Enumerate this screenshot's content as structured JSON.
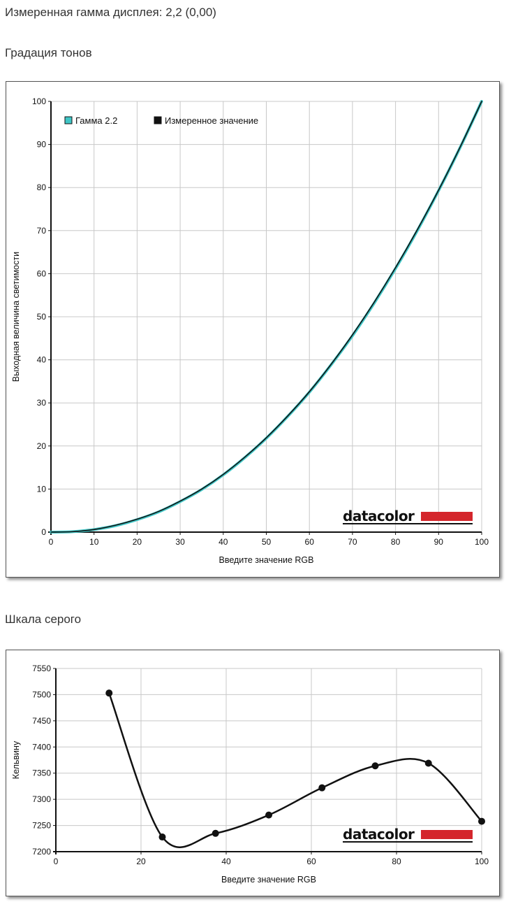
{
  "header": {
    "measured_gamma": "Измеренная гамма дисплея: 2,2 (0,00)",
    "tone_section": "Градация тонов",
    "gray_section": "Шкала серого"
  },
  "brand": {
    "text": "datacolor",
    "bar_color": "#d4262c"
  },
  "chart_data": [
    {
      "type": "line",
      "title": "",
      "xlabel": "Введите значение RGB",
      "ylabel": "Выходная величина светимости",
      "xlim": [
        0,
        100
      ],
      "ylim": [
        0,
        100
      ],
      "xticks": [
        0,
        10,
        20,
        30,
        40,
        50,
        60,
        70,
        80,
        90,
        100
      ],
      "yticks": [
        0,
        10,
        20,
        30,
        40,
        50,
        60,
        70,
        80,
        90,
        100
      ],
      "grid": true,
      "legend": "top-left",
      "series": [
        {
          "name": "Гамма 2.2",
          "color": "#3fc6c6",
          "x": [
            0,
            5,
            10,
            15,
            20,
            25,
            30,
            35,
            40,
            45,
            50,
            55,
            60,
            65,
            70,
            75,
            80,
            85,
            90,
            95,
            100
          ],
          "y": [
            0,
            0.1,
            0.6,
            1.5,
            2.9,
            4.7,
            7.1,
            9.9,
            13.3,
            17.3,
            21.8,
            26.9,
            32.5,
            38.8,
            45.6,
            53.1,
            61.2,
            69.9,
            79.3,
            89.3,
            100
          ]
        },
        {
          "name": "Измеренное значение",
          "color": "#111111",
          "x": [
            0,
            5,
            10,
            15,
            20,
            25,
            30,
            35,
            40,
            45,
            50,
            55,
            60,
            65,
            70,
            75,
            80,
            85,
            90,
            95,
            100
          ],
          "y": [
            0,
            0.1,
            0.6,
            1.6,
            3.0,
            4.8,
            7.2,
            10.0,
            13.4,
            17.4,
            21.9,
            27.0,
            32.6,
            38.9,
            45.8,
            53.3,
            61.4,
            70.1,
            79.4,
            89.4,
            100
          ]
        }
      ]
    },
    {
      "type": "line",
      "title": "",
      "xlabel": "Введите значение RGB",
      "ylabel": "Кельвину",
      "xlim": [
        0,
        100
      ],
      "ylim": [
        7200,
        7550
      ],
      "xticks": [
        0,
        20,
        40,
        60,
        80,
        100
      ],
      "yticks": [
        7200,
        7250,
        7300,
        7350,
        7400,
        7450,
        7500,
        7550
      ],
      "grid": true,
      "series": [
        {
          "color": "#111111",
          "markers": true,
          "x": [
            12.5,
            25,
            37.5,
            50,
            62.5,
            75,
            87.5,
            100
          ],
          "y": [
            7503,
            7228,
            7235,
            7270,
            7322,
            7364,
            7369,
            7258
          ]
        }
      ]
    }
  ]
}
